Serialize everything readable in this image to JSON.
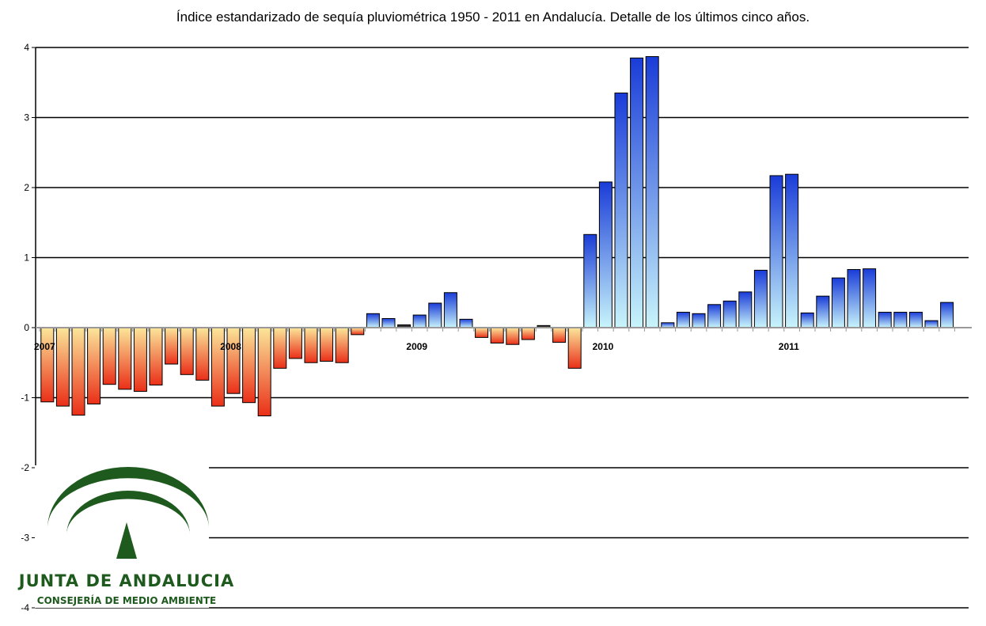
{
  "chart_data": {
    "type": "bar",
    "title": "Índice estandarizado de sequía pluviométrica 1950 - 2011 en Andalucía. Detalle de los últimos cinco años.",
    "xlabel": "",
    "ylabel": "",
    "ylim": [
      -4,
      4
    ],
    "y_ticks": [
      "4",
      "3",
      "2",
      "1",
      "0",
      "-1",
      "-2",
      "-3",
      "-4"
    ],
    "grid": true,
    "year_labels": [
      {
        "label": "2007",
        "index": 0
      },
      {
        "label": "2008",
        "index": 12
      },
      {
        "label": "2009",
        "index": 24
      },
      {
        "label": "2010",
        "index": 36
      },
      {
        "label": "2011",
        "index": 48
      }
    ],
    "values": [
      -1.06,
      -1.12,
      -1.25,
      -1.09,
      -0.81,
      -0.88,
      -0.91,
      -0.82,
      -0.52,
      -0.67,
      -0.75,
      -1.12,
      -0.94,
      -1.07,
      -1.26,
      -0.58,
      -0.44,
      -0.5,
      -0.48,
      -0.5,
      -0.1,
      0.2,
      0.13,
      0.04,
      0.18,
      0.35,
      0.5,
      0.12,
      -0.14,
      -0.22,
      -0.24,
      -0.17,
      0.03,
      -0.21,
      -0.58,
      1.33,
      2.08,
      3.35,
      3.85,
      3.87,
      0.07,
      0.22,
      0.2,
      0.33,
      0.38,
      0.51,
      0.82,
      2.17,
      2.19,
      0.21,
      0.45,
      0.71,
      0.83,
      0.84,
      0.22,
      0.22,
      0.22,
      0.1,
      0.36
    ],
    "positive_color": "#1a3cd8",
    "positive_light": "#c8f4fb",
    "negative_color": "#ea2f18",
    "negative_light": "#fbe69a",
    "near_zero_color": "#303030"
  },
  "logo": {
    "name": "JUNTA DE ANDALUCIA",
    "subtitle": "CONSEJERÍA DE MEDIO AMBIENTE",
    "color": "#1e5a1e"
  }
}
